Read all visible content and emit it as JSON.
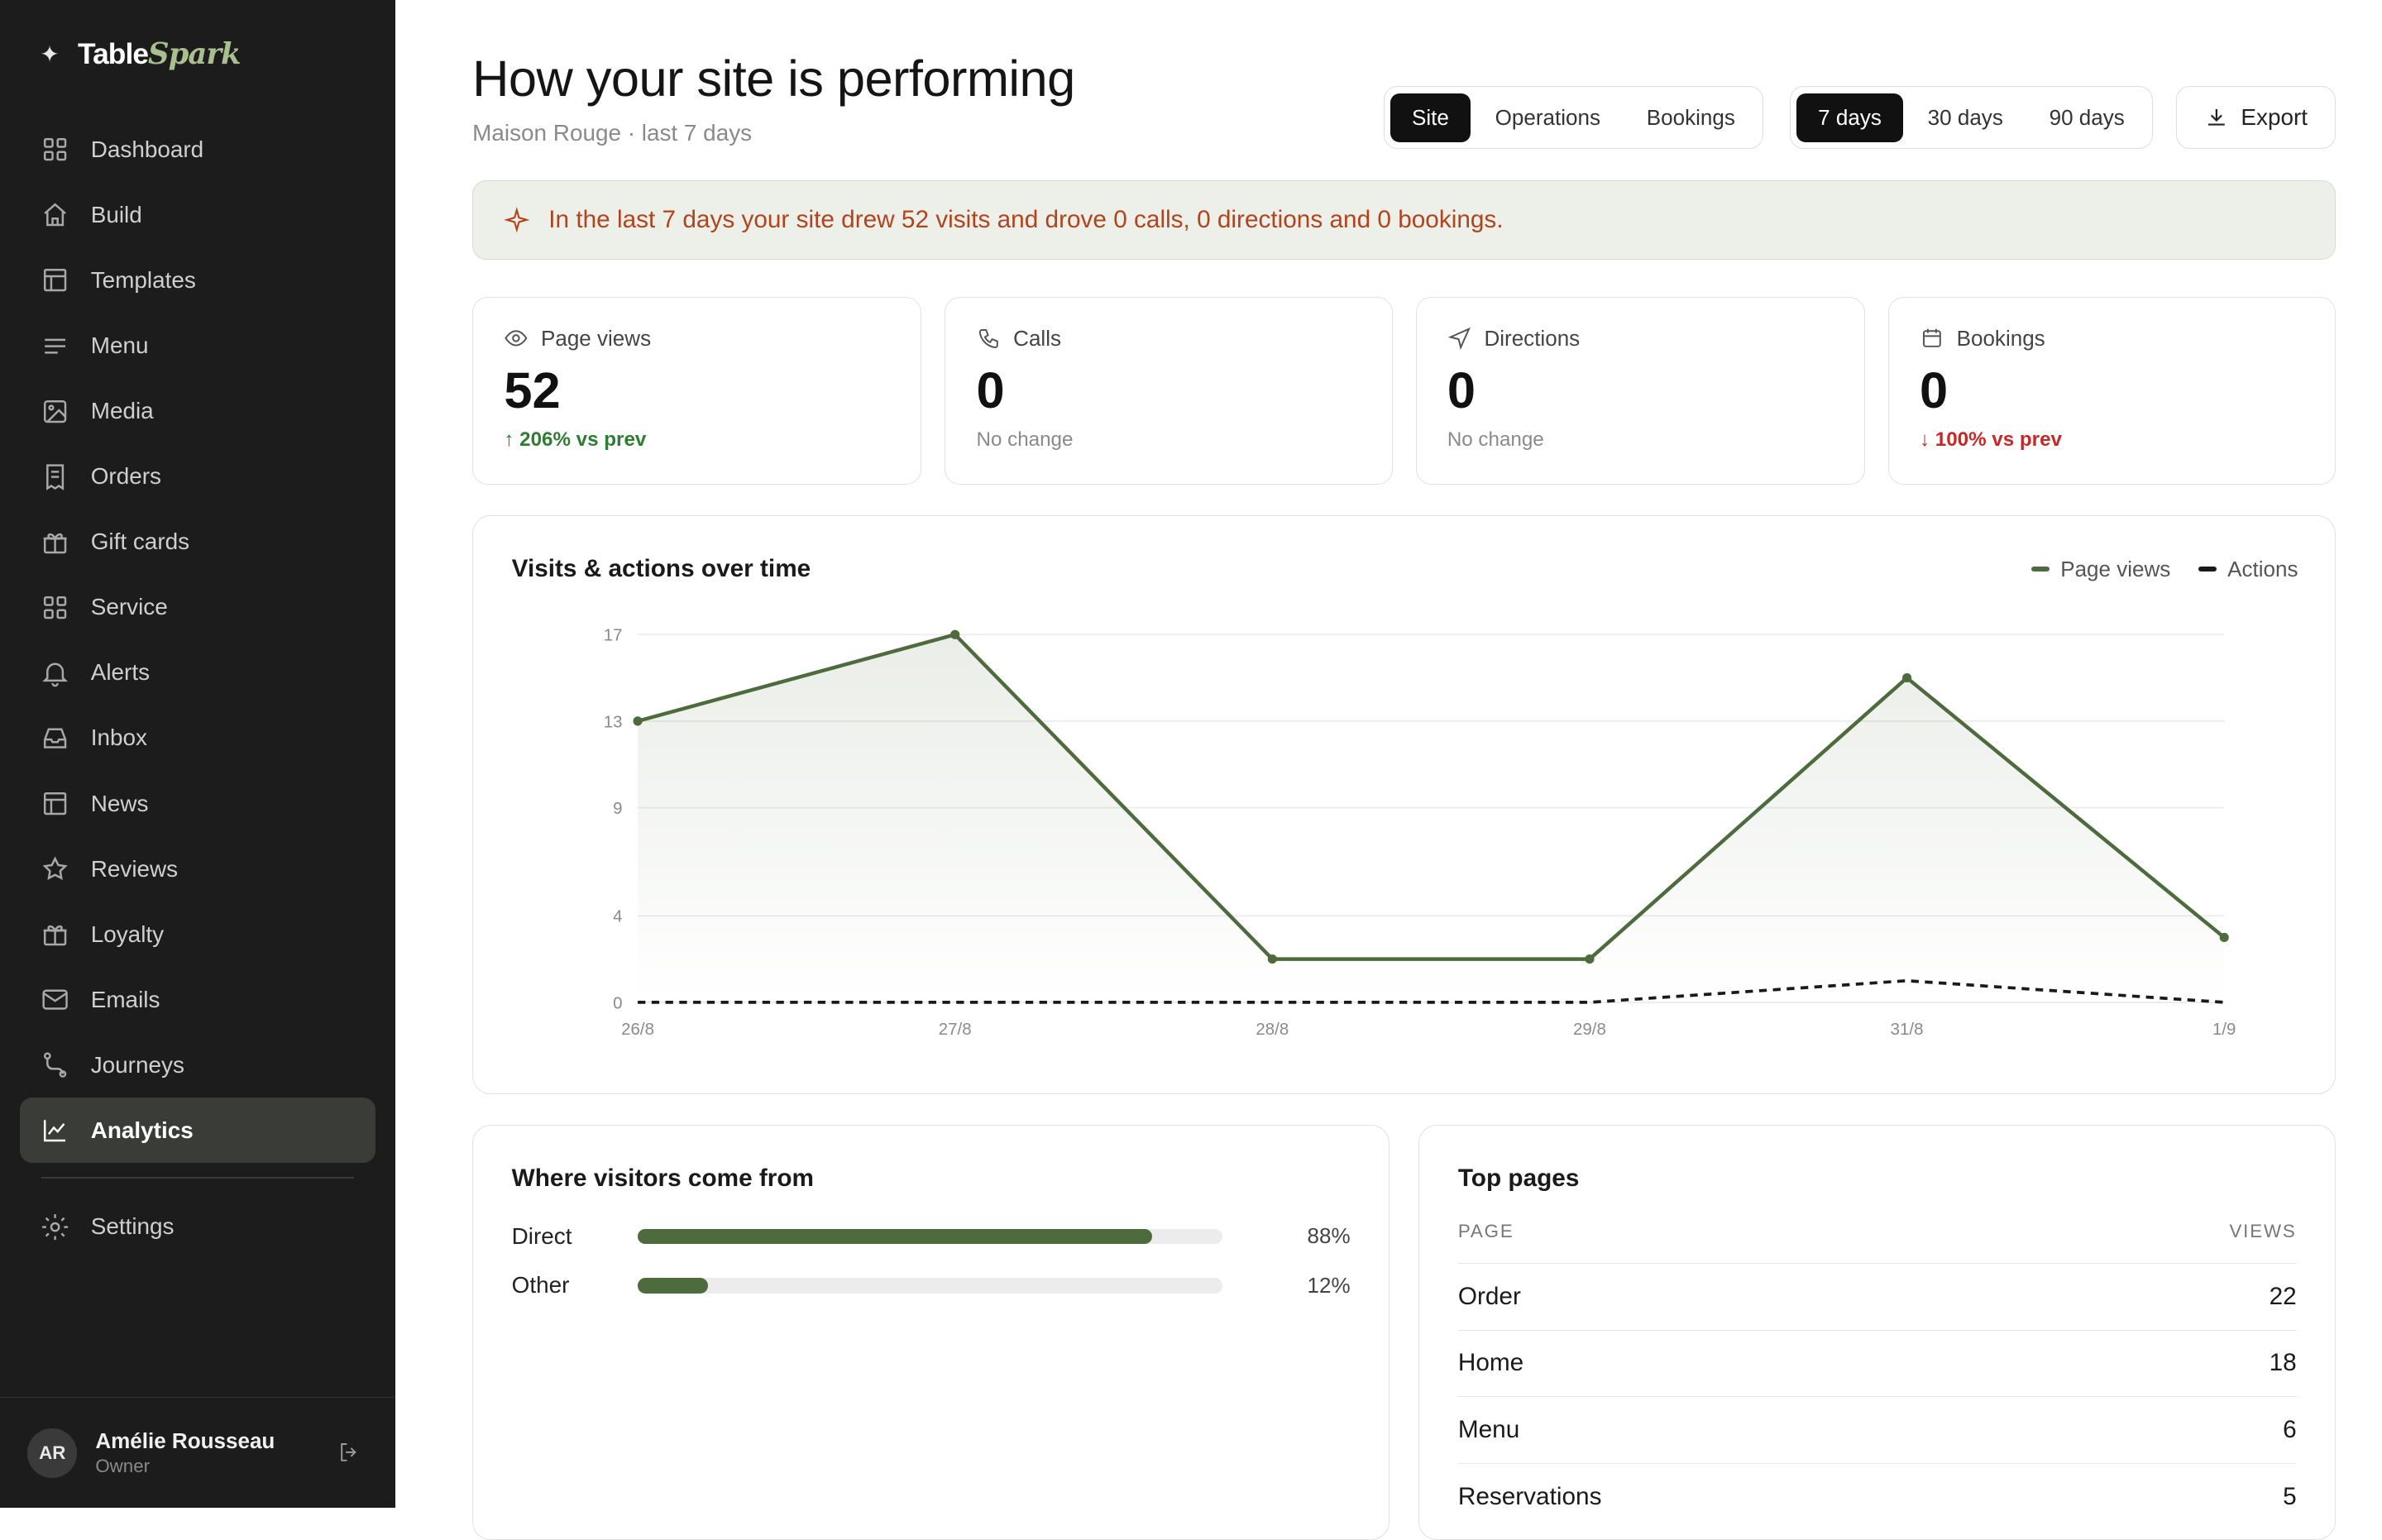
{
  "brand": {
    "prefix": "Table",
    "accent": "Spark"
  },
  "sidebar": {
    "items": [
      {
        "label": "Dashboard",
        "icon": "grid-icon"
      },
      {
        "label": "Build",
        "icon": "home-icon"
      },
      {
        "label": "Templates",
        "icon": "layout-icon"
      },
      {
        "label": "Menu",
        "icon": "menu-lines-icon"
      },
      {
        "label": "Media",
        "icon": "image-icon"
      },
      {
        "label": "Orders",
        "icon": "receipt-icon"
      },
      {
        "label": "Gift cards",
        "icon": "gift-icon"
      },
      {
        "label": "Service",
        "icon": "grid-icon"
      },
      {
        "label": "Alerts",
        "icon": "bell-icon"
      },
      {
        "label": "Inbox",
        "icon": "inbox-icon"
      },
      {
        "label": "News",
        "icon": "layout-icon"
      },
      {
        "label": "Reviews",
        "icon": "star-icon"
      },
      {
        "label": "Loyalty",
        "icon": "gift-icon"
      },
      {
        "label": "Emails",
        "icon": "mail-icon"
      },
      {
        "label": "Journeys",
        "icon": "route-icon"
      },
      {
        "label": "Analytics",
        "icon": "chart-icon",
        "active": true
      }
    ],
    "settings": {
      "label": "Settings",
      "icon": "gear-icon"
    }
  },
  "user": {
    "initials": "AR",
    "name": "Amélie Rousseau",
    "role": "Owner"
  },
  "header": {
    "title": "How your site is performing",
    "subtitle": "Maison Rouge · last 7 days",
    "tabs": [
      "Site",
      "Operations",
      "Bookings"
    ],
    "active_tab": "Site",
    "ranges": [
      "7 days",
      "30 days",
      "90 days"
    ],
    "active_range": "7 days",
    "export_label": "Export"
  },
  "banner": {
    "text": "In the last 7 days your site drew 52 visits and drove 0 calls, 0 directions and 0 bookings."
  },
  "stats": [
    {
      "label": "Page views",
      "value": "52",
      "delta": "↑ 206% vs prev",
      "trend": "up",
      "icon": "eye-icon"
    },
    {
      "label": "Calls",
      "value": "0",
      "delta": "No change",
      "trend": "flat",
      "icon": "phone-icon"
    },
    {
      "label": "Directions",
      "value": "0",
      "delta": "No change",
      "trend": "flat",
      "icon": "navigation-icon"
    },
    {
      "label": "Bookings",
      "value": "0",
      "delta": "↓ 100% vs prev",
      "trend": "down",
      "icon": "calendar-icon"
    }
  ],
  "chart_card": {
    "title": "Visits & actions over time"
  },
  "chart_data": {
    "type": "line",
    "x": [
      "26/8",
      "27/8",
      "28/8",
      "29/8",
      "31/8",
      "1/9"
    ],
    "series": [
      {
        "name": "Page views",
        "values": [
          13,
          17,
          2,
          2,
          15,
          3
        ],
        "color": "#4e6b3d",
        "style": "solid-area"
      },
      {
        "name": "Actions",
        "values": [
          0,
          0,
          0,
          0,
          1,
          0
        ],
        "color": "#1a1a1a",
        "style": "dashed"
      }
    ],
    "yticks": [
      0,
      4,
      9,
      13,
      17
    ],
    "ylim": [
      0,
      17
    ],
    "grid": true,
    "legend": "top-right"
  },
  "sources": {
    "title": "Where visitors come from",
    "rows": [
      {
        "label": "Direct",
        "pct": 88,
        "pct_label": "88%"
      },
      {
        "label": "Other",
        "pct": 12,
        "pct_label": "12%"
      }
    ]
  },
  "top_pages": {
    "title": "Top pages",
    "col_page": "PAGE",
    "col_views": "VIEWS",
    "rows": [
      {
        "page": "Order",
        "views": "22"
      },
      {
        "page": "Home",
        "views": "18"
      },
      {
        "page": "Menu",
        "views": "6"
      },
      {
        "page": "Reservations",
        "views": "5"
      }
    ]
  }
}
